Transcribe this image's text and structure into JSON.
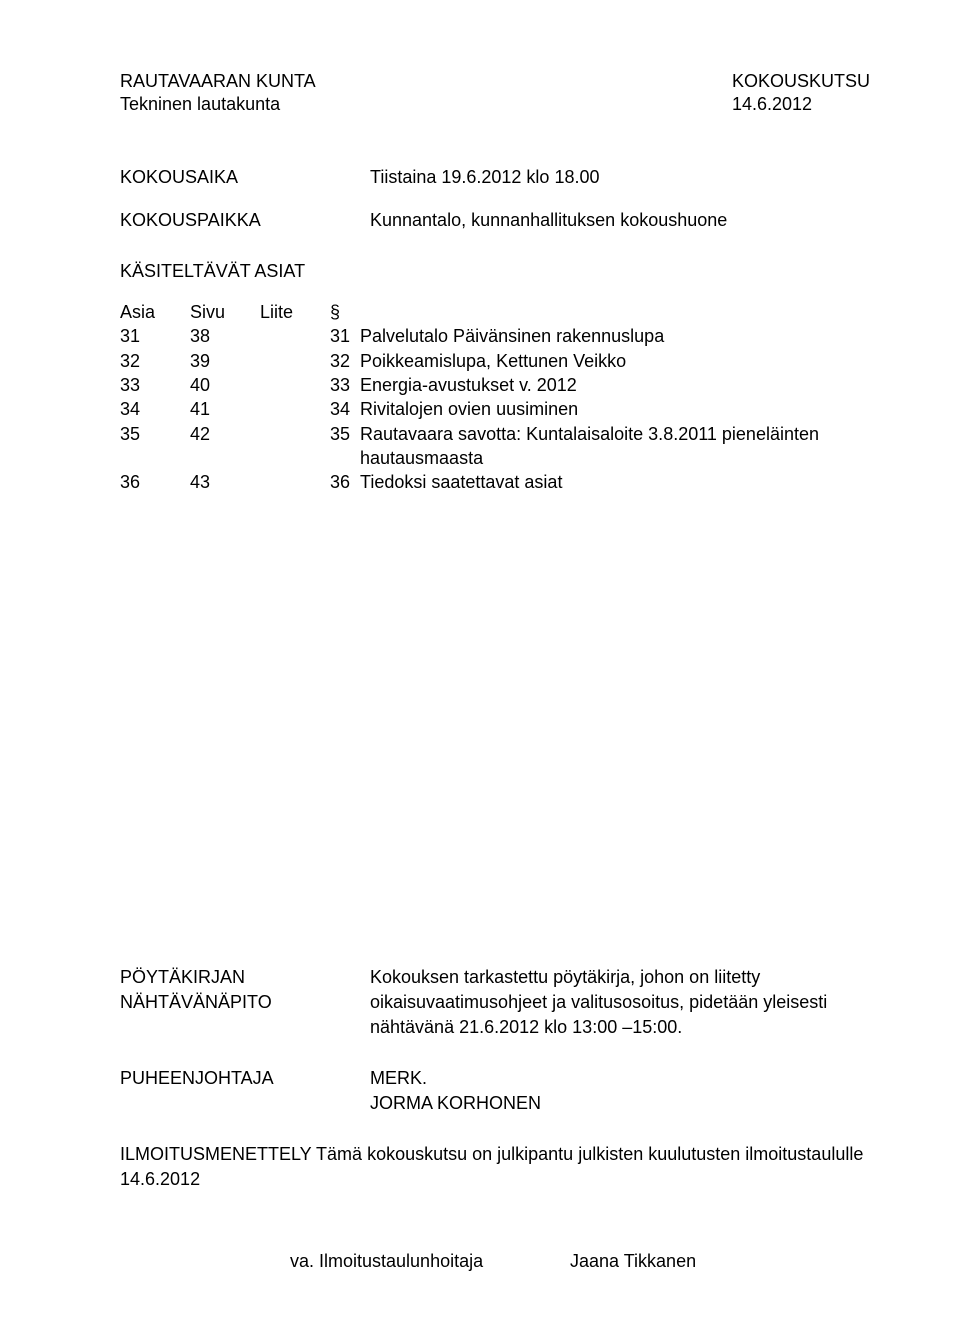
{
  "header": {
    "org": "RAUTAVAARAN KUNTA",
    "board": "Tekninen lautakunta",
    "doc_type": "KOKOUSKUTSU",
    "doc_date": "14.6.2012"
  },
  "meeting": {
    "time_label": "KOKOUSAIKA",
    "time_value": "Tiistaina 19.6.2012 klo 18.00",
    "place_label": "KOKOUSPAIKKA",
    "place_value": "Kunnantalo, kunnanhallituksen kokoushuone"
  },
  "agenda": {
    "heading": "KÄSITELTÄVÄT ASIAT",
    "col_asia": "Asia",
    "col_sivu": "Sivu",
    "col_liite": "Liite",
    "col_sym": "§",
    "items": [
      {
        "asia": "31",
        "sivu": "38",
        "liite": "",
        "sym": "31",
        "desc": "Palvelutalo Päivänsinen rakennuslupa"
      },
      {
        "asia": "32",
        "sivu": "39",
        "liite": "",
        "sym": "32",
        "desc": "Poikkeamislupa, Kettunen Veikko"
      },
      {
        "asia": "33",
        "sivu": "40",
        "liite": "",
        "sym": "33",
        "desc": "Energia-avustukset v. 2012"
      },
      {
        "asia": "34",
        "sivu": "41",
        "liite": "",
        "sym": "34",
        "desc": "Rivitalojen ovien uusiminen"
      },
      {
        "asia": "35",
        "sivu": "42",
        "liite": "",
        "sym": "35",
        "desc": "Rautavaara savotta: Kuntalaisaloite 3.8.2011 pieneläinten hautausmaasta"
      },
      {
        "asia": "36",
        "sivu": "43",
        "liite": "",
        "sym": "36",
        "desc": "Tiedoksi saatettavat asiat"
      }
    ]
  },
  "footer": {
    "poytakirja_label": "PÖYTÄKIRJAN\nNÄHTÄVÄNÄPITO",
    "poytakirja_text": "Kokouksen tarkastettu pöytäkirja, johon on liitetty oikaisuvaatimusohjeet ja valitusosoitus, pidetään yleisesti nähtävänä 21.6.2012 klo 13:00 –15:00.",
    "pj_label": "PUHEENJOHTAJA",
    "pj_value": "MERK.\nJORMA KORHONEN",
    "ilmoitus_label": "ILMOITUSMENETTELY",
    "ilmoitus_text": "Tämä kokouskutsu on julkipantu julkisten kuulutusten ilmoitustaululle 14.6.2012",
    "va_label": "va. Ilmoitustaulunhoitaja",
    "va_name": "Jaana Tikkanen"
  }
}
